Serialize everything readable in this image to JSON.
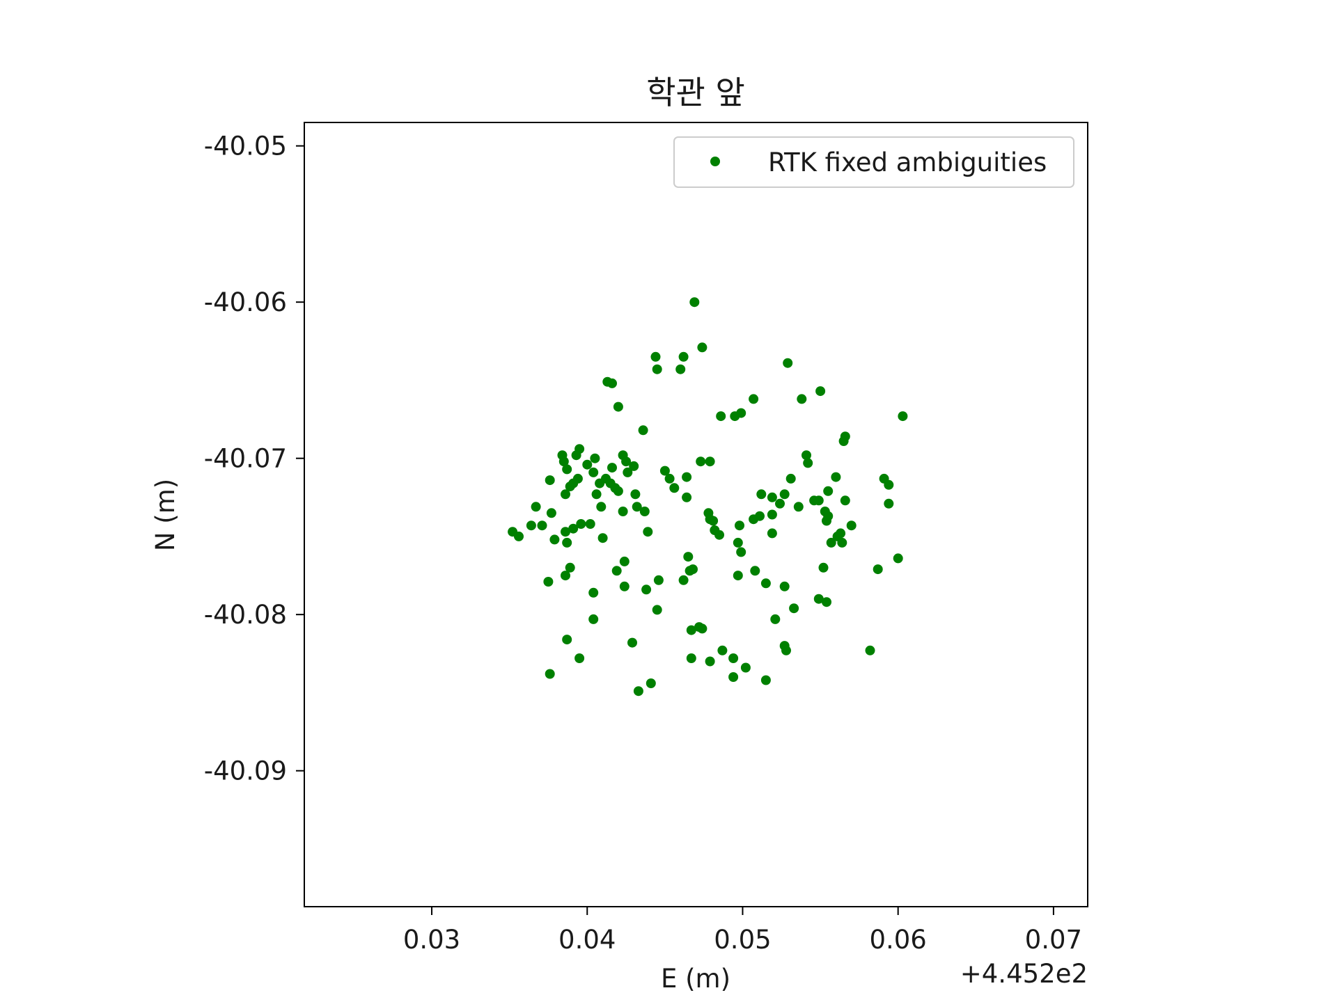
{
  "chart_data": {
    "type": "scatter",
    "title": "학관 앞",
    "xlabel": "E (m)",
    "ylabel": "N (m)",
    "x_offset_text": "+4.452e2",
    "xlim": [
      0.0218,
      0.0722
    ],
    "ylim": [
      -40.0987,
      -40.0485
    ],
    "x_ticks": [
      0.03,
      0.04,
      0.05,
      0.06,
      0.07
    ],
    "x_tick_labels": [
      "0.03",
      "0.04",
      "0.05",
      "0.06",
      "0.07"
    ],
    "y_ticks": [
      -40.05,
      -40.06,
      -40.07,
      -40.08,
      -40.09
    ],
    "y_tick_labels": [
      "-40.05",
      "-40.06",
      "-40.07",
      "-40.08",
      "-40.09"
    ],
    "grid": false,
    "legend_position": "top-right",
    "series": [
      {
        "name": "RTK fixed ambiguities",
        "color": "#008000",
        "marker": "circle",
        "points": [
          [
            0.0469,
            -40.06
          ],
          [
            0.0474,
            -40.0629
          ],
          [
            0.0444,
            -40.0635
          ],
          [
            0.0462,
            -40.0635
          ],
          [
            0.0529,
            -40.0639
          ],
          [
            0.0445,
            -40.0643
          ],
          [
            0.046,
            -40.0643
          ],
          [
            0.0413,
            -40.0651
          ],
          [
            0.0416,
            -40.0652
          ],
          [
            0.055,
            -40.0657
          ],
          [
            0.0538,
            -40.0662
          ],
          [
            0.0507,
            -40.0662
          ],
          [
            0.042,
            -40.0667
          ],
          [
            0.0486,
            -40.0673
          ],
          [
            0.0495,
            -40.0673
          ],
          [
            0.0499,
            -40.0671
          ],
          [
            0.0603,
            -40.0673
          ],
          [
            0.0436,
            -40.0682
          ],
          [
            0.0566,
            -40.0686
          ],
          [
            0.0565,
            -40.0689
          ],
          [
            0.0395,
            -40.0694
          ],
          [
            0.0384,
            -40.0698
          ],
          [
            0.0393,
            -40.0698
          ],
          [
            0.0423,
            -40.0698
          ],
          [
            0.0405,
            -40.07
          ],
          [
            0.0541,
            -40.0698
          ],
          [
            0.0385,
            -40.0702
          ],
          [
            0.0425,
            -40.0702
          ],
          [
            0.0473,
            -40.0702
          ],
          [
            0.0479,
            -40.0702
          ],
          [
            0.04,
            -40.0704
          ],
          [
            0.0416,
            -40.0706
          ],
          [
            0.043,
            -40.0705
          ],
          [
            0.0542,
            -40.0703
          ],
          [
            0.0387,
            -40.0707
          ],
          [
            0.0404,
            -40.0709
          ],
          [
            0.0426,
            -40.0709
          ],
          [
            0.045,
            -40.0708
          ],
          [
            0.0464,
            -40.0712
          ],
          [
            0.0394,
            -40.0713
          ],
          [
            0.0412,
            -40.0713
          ],
          [
            0.0453,
            -40.0713
          ],
          [
            0.0531,
            -40.0713
          ],
          [
            0.056,
            -40.0712
          ],
          [
            0.0591,
            -40.0713
          ],
          [
            0.0376,
            -40.0714
          ],
          [
            0.0391,
            -40.0716
          ],
          [
            0.0408,
            -40.0716
          ],
          [
            0.0415,
            -40.0716
          ],
          [
            0.0389,
            -40.0718
          ],
          [
            0.0418,
            -40.0719
          ],
          [
            0.0594,
            -40.0717
          ],
          [
            0.0456,
            -40.0719
          ],
          [
            0.042,
            -40.0721
          ],
          [
            0.0555,
            -40.0721
          ],
          [
            0.0406,
            -40.0723
          ],
          [
            0.0386,
            -40.0723
          ],
          [
            0.0431,
            -40.0723
          ],
          [
            0.0464,
            -40.0725
          ],
          [
            0.0512,
            -40.0723
          ],
          [
            0.0519,
            -40.0725
          ],
          [
            0.0527,
            -40.0723
          ],
          [
            0.0546,
            -40.0727
          ],
          [
            0.0549,
            -40.0727
          ],
          [
            0.0566,
            -40.0727
          ],
          [
            0.0524,
            -40.0729
          ],
          [
            0.0536,
            -40.0731
          ],
          [
            0.0594,
            -40.0729
          ],
          [
            0.0367,
            -40.0731
          ],
          [
            0.0409,
            -40.0731
          ],
          [
            0.0432,
            -40.0731
          ],
          [
            0.0437,
            -40.0734
          ],
          [
            0.0423,
            -40.0734
          ],
          [
            0.0377,
            -40.0735
          ],
          [
            0.0478,
            -40.0735
          ],
          [
            0.0553,
            -40.0734
          ],
          [
            0.0511,
            -40.0737
          ],
          [
            0.0519,
            -40.0736
          ],
          [
            0.0555,
            -40.0737
          ],
          [
            0.0479,
            -40.0739
          ],
          [
            0.0481,
            -40.074
          ],
          [
            0.0507,
            -40.0739
          ],
          [
            0.0554,
            -40.074
          ],
          [
            0.0396,
            -40.0742
          ],
          [
            0.0402,
            -40.0742
          ],
          [
            0.0364,
            -40.0743
          ],
          [
            0.0371,
            -40.0743
          ],
          [
            0.0498,
            -40.0743
          ],
          [
            0.057,
            -40.0743
          ],
          [
            0.0391,
            -40.0745
          ],
          [
            0.0482,
            -40.0746
          ],
          [
            0.0439,
            -40.0747
          ],
          [
            0.0352,
            -40.0747
          ],
          [
            0.0386,
            -40.0747
          ],
          [
            0.0485,
            -40.0749
          ],
          [
            0.0519,
            -40.0748
          ],
          [
            0.0563,
            -40.0748
          ],
          [
            0.0561,
            -40.075
          ],
          [
            0.0356,
            -40.075
          ],
          [
            0.041,
            -40.0751
          ],
          [
            0.0379,
            -40.0752
          ],
          [
            0.0387,
            -40.0754
          ],
          [
            0.0497,
            -40.0754
          ],
          [
            0.0557,
            -40.0754
          ],
          [
            0.0564,
            -40.0754
          ],
          [
            0.0499,
            -40.076
          ],
          [
            0.0465,
            -40.0763
          ],
          [
            0.0424,
            -40.0766
          ],
          [
            0.06,
            -40.0764
          ],
          [
            0.0389,
            -40.077
          ],
          [
            0.0552,
            -40.077
          ],
          [
            0.0468,
            -40.0771
          ],
          [
            0.0466,
            -40.0772
          ],
          [
            0.0419,
            -40.0772
          ],
          [
            0.0508,
            -40.0772
          ],
          [
            0.0587,
            -40.0771
          ],
          [
            0.0386,
            -40.0775
          ],
          [
            0.0497,
            -40.0775
          ],
          [
            0.0375,
            -40.0779
          ],
          [
            0.0462,
            -40.0778
          ],
          [
            0.0446,
            -40.0778
          ],
          [
            0.0515,
            -40.078
          ],
          [
            0.0424,
            -40.0782
          ],
          [
            0.0527,
            -40.0782
          ],
          [
            0.0438,
            -40.0784
          ],
          [
            0.0404,
            -40.0786
          ],
          [
            0.0549,
            -40.079
          ],
          [
            0.0554,
            -40.0792
          ],
          [
            0.0533,
            -40.0796
          ],
          [
            0.0445,
            -40.0797
          ],
          [
            0.0404,
            -40.0803
          ],
          [
            0.0521,
            -40.0803
          ],
          [
            0.0467,
            -40.081
          ],
          [
            0.0474,
            -40.0809
          ],
          [
            0.0472,
            -40.0808
          ],
          [
            0.0387,
            -40.0816
          ],
          [
            0.0429,
            -40.0818
          ],
          [
            0.0527,
            -40.082
          ],
          [
            0.0528,
            -40.0823
          ],
          [
            0.0487,
            -40.0823
          ],
          [
            0.0582,
            -40.0823
          ],
          [
            0.0395,
            -40.0828
          ],
          [
            0.0467,
            -40.0828
          ],
          [
            0.0494,
            -40.0828
          ],
          [
            0.0479,
            -40.083
          ],
          [
            0.0502,
            -40.0834
          ],
          [
            0.0376,
            -40.0838
          ],
          [
            0.0494,
            -40.084
          ],
          [
            0.0515,
            -40.0842
          ],
          [
            0.0441,
            -40.0844
          ],
          [
            0.0433,
            -40.0849
          ]
        ]
      }
    ]
  }
}
